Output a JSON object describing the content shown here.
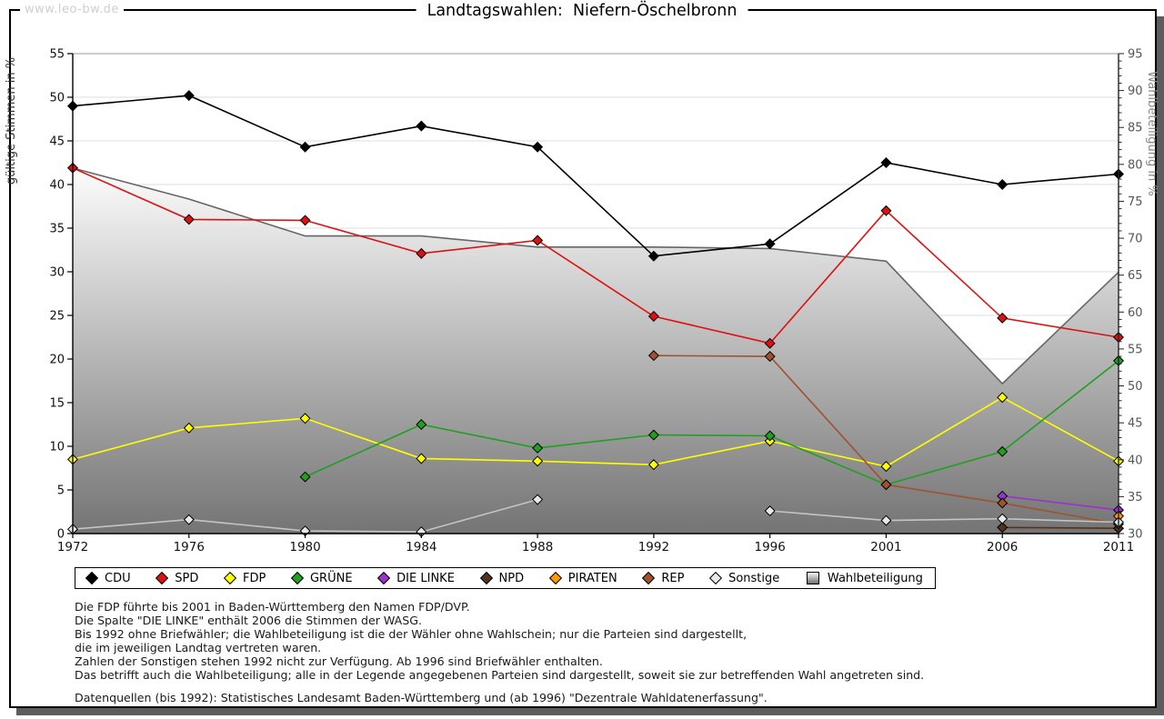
{
  "frame": {
    "watermark": "www.leo-bw.de"
  },
  "title": "Landtagswahlen:  Niefern-Öschelbronn",
  "chart_data": {
    "type": "line",
    "title": "Landtagswahlen: Niefern-Öschelbronn",
    "categories": [
      "1972",
      "1976",
      "1980",
      "1984",
      "1988",
      "1992",
      "1996",
      "2001",
      "2006",
      "2011"
    ],
    "grid": "horizontal",
    "legend_position": "bottom",
    "left_axis": {
      "label": "gültige Stimmen in %",
      "min": 0,
      "max": 55,
      "tick_step": 5,
      "ticks": [
        0,
        5,
        10,
        15,
        20,
        25,
        30,
        35,
        40,
        45,
        50,
        55
      ]
    },
    "right_axis": {
      "label": "Wahlbeteiligung in %",
      "min": 30,
      "max": 95,
      "tick_step": 5,
      "minor_tick_step": 1,
      "ticks": [
        30,
        35,
        40,
        45,
        50,
        55,
        60,
        65,
        70,
        75,
        80,
        85,
        90,
        95
      ]
    },
    "series": [
      {
        "name": "CDU",
        "color": "#000000",
        "axis": "left",
        "values": [
          49.0,
          50.2,
          44.3,
          46.7,
          44.3,
          31.8,
          33.2,
          42.5,
          40.0,
          41.2
        ]
      },
      {
        "name": "SPD",
        "color": "#dd1111",
        "axis": "left",
        "values": [
          41.9,
          36.0,
          35.9,
          32.1,
          33.6,
          24.9,
          21.8,
          37.0,
          24.7,
          22.5
        ]
      },
      {
        "name": "FDP",
        "color": "#ffff00",
        "axis": "left",
        "values": [
          8.5,
          12.1,
          13.2,
          8.6,
          8.3,
          7.9,
          10.6,
          7.7,
          15.6,
          8.3
        ]
      },
      {
        "name": "GRÜNE",
        "color": "#1fa01f",
        "axis": "left",
        "values": [
          null,
          null,
          6.5,
          12.5,
          9.8,
          11.3,
          11.2,
          5.6,
          9.4,
          19.8
        ]
      },
      {
        "name": "DIE LINKE",
        "color": "#9933cc",
        "axis": "left",
        "values": [
          null,
          null,
          null,
          null,
          null,
          null,
          null,
          null,
          4.3,
          2.7
        ]
      },
      {
        "name": "NPD",
        "color": "#54331c",
        "axis": "left",
        "values": [
          null,
          null,
          null,
          null,
          null,
          null,
          null,
          null,
          0.7,
          0.6
        ]
      },
      {
        "name": "PIRATEN",
        "color": "#ff9900",
        "axis": "left",
        "values": [
          null,
          null,
          null,
          null,
          null,
          null,
          null,
          null,
          null,
          2.0
        ]
      },
      {
        "name": "REP",
        "color": "#a0522d",
        "axis": "left",
        "values": [
          null,
          null,
          null,
          null,
          null,
          20.4,
          20.3,
          5.6,
          3.5,
          1.1
        ]
      },
      {
        "name": "Sonstige",
        "color": "#c4c4c4",
        "marker_fill": "#e8e8e8",
        "axis": "left",
        "values": [
          0.5,
          1.6,
          0.3,
          0.2,
          3.9,
          null,
          2.6,
          1.5,
          1.7,
          1.3
        ]
      }
    ],
    "area_series": {
      "name": "Wahlbeteiligung",
      "axis": "right",
      "stroke": "#666666",
      "gradient": [
        "#fcfcfc",
        "#747474"
      ],
      "values": [
        79.5,
        75.3,
        70.3,
        70.3,
        68.8,
        68.8,
        68.6,
        66.9,
        50.3,
        65.4
      ]
    }
  },
  "legend": {
    "entries": [
      {
        "label": "CDU",
        "type": "diamond",
        "color": "#000000"
      },
      {
        "label": "SPD",
        "type": "diamond",
        "color": "#dd1111"
      },
      {
        "label": "FDP",
        "type": "diamond",
        "color": "#ffff00"
      },
      {
        "label": "GRÜNE",
        "type": "diamond",
        "color": "#1fa01f"
      },
      {
        "label": "DIE LINKE",
        "type": "diamond",
        "color": "#9933cc"
      },
      {
        "label": "NPD",
        "type": "diamond",
        "color": "#54331c"
      },
      {
        "label": "PIRATEN",
        "type": "diamond",
        "color": "#ff9900"
      },
      {
        "label": "REP",
        "type": "diamond",
        "color": "#a0522d"
      },
      {
        "label": "Sonstige",
        "type": "diamond",
        "color": "#e8e8e8"
      },
      {
        "label": "Wahlbeteiligung",
        "type": "gradient-square",
        "color": "#9a9a9a"
      }
    ]
  },
  "notes": {
    "lines": [
      "Die FDP führte bis 2001 in Baden-Württemberg den Namen FDP/DVP.",
      "Die Spalte \"DIE LINKE\" enthält 2006 die Stimmen der WASG.",
      "Bis 1992 ohne Briefwähler; die Wahlbeteiligung ist die der Wähler ohne Wahlschein; nur die Parteien sind dargestellt,",
      "die im jeweiligen Landtag vertreten waren.",
      "Zahlen der Sonstigen stehen 1992 nicht zur Verfügung. Ab 1996 sind Briefwähler enthalten.",
      "Das betrifft auch die Wahlbeteiligung; alle in der Legende angegebenen Parteien sind dargestellt, soweit sie zur betreffenden Wahl angetreten sind."
    ],
    "source": "Datenquellen (bis 1992): Statistisches Landesamt Baden-Württemberg und (ab 1996) \"Dezentrale Wahldatenerfassung\"."
  },
  "colors": {
    "panel_border": "#000000",
    "panel_shadow": "#5c5c5c",
    "gridline": "#dcdcdc",
    "axis": "#000000",
    "right_tick_label": "#555555",
    "left_axis_title": "#333333",
    "right_axis_title": "#888888",
    "watermark": "#cfcfcf"
  }
}
